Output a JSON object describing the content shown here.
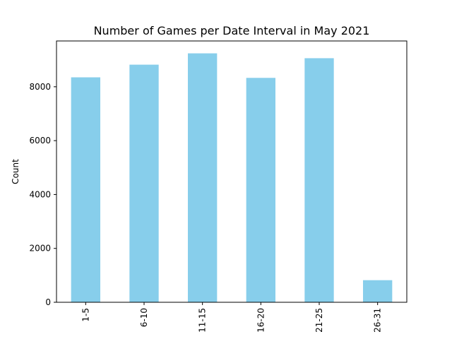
{
  "chart_data": {
    "type": "bar",
    "title": "Number of Games per Date Interval in May 2021",
    "xlabel": "",
    "ylabel": "Count",
    "categories": [
      "1-5",
      "6-10",
      "11-15",
      "16-20",
      "21-25",
      "26-31"
    ],
    "values": [
      8350,
      8820,
      9240,
      8330,
      9060,
      820
    ],
    "ylim": [
      0,
      9700
    ],
    "yticks": [
      0,
      2000,
      4000,
      6000,
      8000
    ],
    "grid": false,
    "bar_color": "#87CEEB"
  }
}
